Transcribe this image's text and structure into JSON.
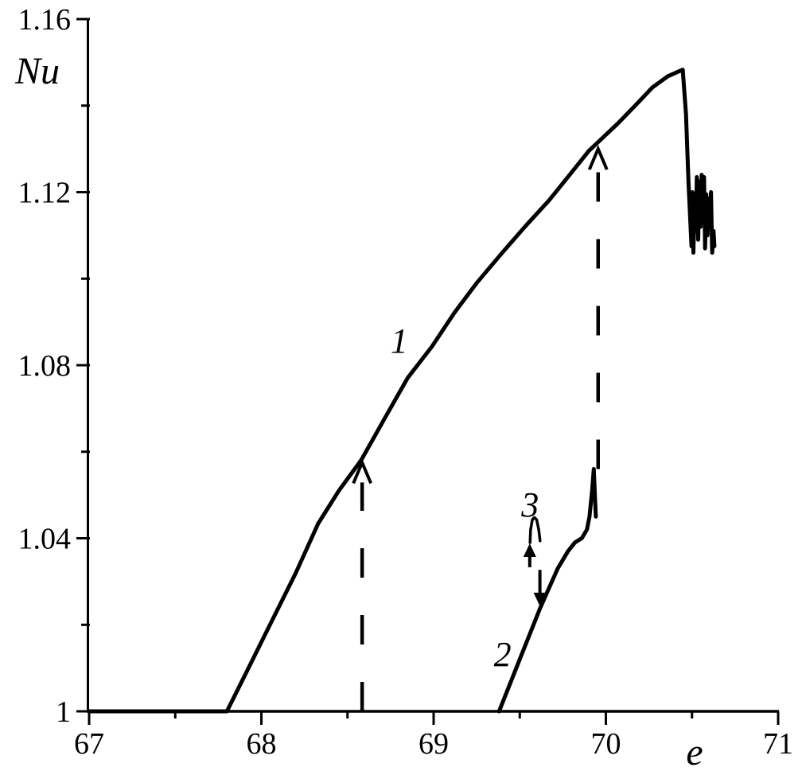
{
  "figure": {
    "background": "#ffffff",
    "stroke_color": "#000000"
  },
  "chart_data": {
    "type": "line",
    "title": "",
    "xlabel": "e",
    "ylabel": "Nu",
    "xlim": [
      67,
      71
    ],
    "ylim": [
      1.0,
      1.16
    ],
    "grid": false,
    "legend": "none",
    "x_major_ticks": [
      67,
      68,
      69,
      70,
      71
    ],
    "x_tick_labels": [
      "67",
      "68",
      "69",
      "70",
      "71"
    ],
    "x_minor_ticks": [
      67.5,
      68.5,
      69.5,
      70.5
    ],
    "y_major_ticks": [
      1.0,
      1.04,
      1.08,
      1.12,
      1.16
    ],
    "y_tick_labels": [
      "1",
      "1.04",
      "1.08",
      "1.12",
      "1.16"
    ],
    "y_minor_ticks": [
      1.02,
      1.06,
      1.1,
      1.14
    ],
    "series": [
      {
        "name": "1",
        "description": "upper branch: onset at e=67.8, maximum Nu=1.148 at e=70.45, sharp drop then chaotic oscillations near e=70.5-70.63",
        "points": [
          [
            67.0,
            1.0
          ],
          [
            67.8,
            1.0
          ],
          [
            67.9,
            1.008
          ],
          [
            68.05,
            1.02
          ],
          [
            68.2,
            1.032
          ],
          [
            68.33,
            1.0434
          ],
          [
            68.45,
            1.051
          ],
          [
            68.58,
            1.0581
          ],
          [
            68.72,
            1.068
          ],
          [
            68.85,
            1.0771
          ],
          [
            68.99,
            1.0843
          ],
          [
            69.12,
            1.0921
          ],
          [
            69.25,
            1.099
          ],
          [
            69.39,
            1.1056
          ],
          [
            69.53,
            1.112
          ],
          [
            69.67,
            1.1181
          ],
          [
            69.79,
            1.124
          ],
          [
            69.9,
            1.1295
          ],
          [
            70.07,
            1.1359
          ],
          [
            70.17,
            1.14
          ],
          [
            70.27,
            1.1442
          ],
          [
            70.36,
            1.1468
          ],
          [
            70.446,
            1.1483
          ],
          [
            70.465,
            1.138
          ],
          [
            70.48,
            1.122
          ],
          [
            70.497,
            1.1075
          ],
          [
            70.503,
            1.12
          ],
          [
            70.508,
            1.106
          ],
          [
            70.515,
            1.118
          ],
          [
            70.523,
            1.111
          ],
          [
            70.528,
            1.1235
          ],
          [
            70.536,
            1.109
          ],
          [
            70.543,
            1.1225
          ],
          [
            70.55,
            1.112
          ],
          [
            70.556,
            1.124
          ],
          [
            70.563,
            1.115
          ],
          [
            70.57,
            1.1235
          ],
          [
            70.576,
            1.107
          ],
          [
            70.583,
            1.1195
          ],
          [
            70.59,
            1.11
          ],
          [
            70.597,
            1.1185
          ],
          [
            70.603,
            1.113
          ],
          [
            70.61,
            1.12
          ],
          [
            70.617,
            1.106
          ],
          [
            70.625,
            1.111
          ],
          [
            70.63,
            1.1075
          ]
        ]
      },
      {
        "name": "2",
        "description": "lower branch: onset at e=69.38, shoulder near Nu=1.04, narrow spike to Nu=1.056 at e=69.93",
        "points": [
          [
            69.38,
            1.0
          ],
          [
            69.45,
            1.007
          ],
          [
            69.53,
            1.015
          ],
          [
            69.62,
            1.024
          ],
          [
            69.72,
            1.033
          ],
          [
            69.78,
            1.037
          ],
          [
            69.82,
            1.039
          ],
          [
            69.86,
            1.04
          ],
          [
            69.89,
            1.042
          ],
          [
            69.905,
            1.045
          ],
          [
            69.92,
            1.051
          ],
          [
            69.93,
            1.056
          ],
          [
            69.937,
            1.049
          ],
          [
            69.942,
            1.045
          ]
        ]
      },
      {
        "name": "3",
        "description": "small intermediate branch (narrow arc) near e=69.59, Nu=1.044",
        "points": [
          [
            69.56,
            1.039
          ],
          [
            69.563,
            1.042
          ],
          [
            69.573,
            1.0443
          ],
          [
            69.585,
            1.0448
          ],
          [
            69.598,
            1.0443
          ],
          [
            69.61,
            1.042
          ],
          [
            69.618,
            1.0394
          ]
        ]
      }
    ],
    "curve_labels": [
      {
        "text": "1",
        "e": 68.8,
        "nu": 1.0857
      },
      {
        "text": "2",
        "e": 69.4,
        "nu": 1.0132
      },
      {
        "text": "3",
        "e": 69.56,
        "nu": 1.0478
      }
    ],
    "arrows": [
      {
        "style": "dashed",
        "direction": "up",
        "e": 68.585,
        "from_nu": 1.0,
        "to_nu": 1.0575
      },
      {
        "style": "dashed",
        "direction": "up",
        "e": 69.955,
        "from_nu": 1.056,
        "to_nu": 1.13
      },
      {
        "style": "solid",
        "direction": "up",
        "e": 69.558,
        "from_nu": 1.0333,
        "to_nu": 1.0388
      },
      {
        "style": "solid",
        "direction": "down",
        "e": 69.617,
        "from_nu": 1.0327,
        "to_nu": 1.0243
      }
    ]
  }
}
